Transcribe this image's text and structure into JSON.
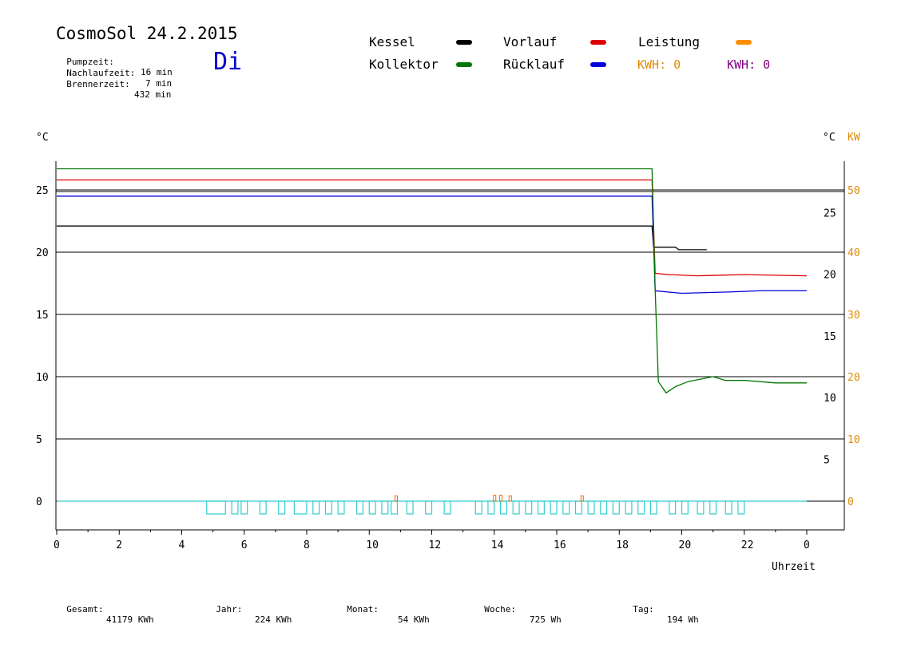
{
  "header": {
    "title": "CosmoSol 24.2.2015",
    "weekday": "Di",
    "stats": [
      {
        "label": "Pumpzeit:",
        "value": "16 min"
      },
      {
        "label": "Nachlaufzeit:",
        "value": "7 min"
      },
      {
        "label": "Brennerzeit:",
        "value": "432 min"
      }
    ]
  },
  "legend": {
    "items": [
      {
        "label": "Kessel",
        "color": "#000000"
      },
      {
        "label": "Vorlauf",
        "color": "#dd0000"
      },
      {
        "label": "Leistung",
        "color": "#ff8c00"
      },
      {
        "label": "Kollektor",
        "color": "#007700"
      },
      {
        "label": "Rücklauf",
        "color": "#0000dd"
      }
    ],
    "kwh_orange": "KWH: 0",
    "kwh_purple": "KWH: 0",
    "kwh_orange_color": "#e08a00",
    "kwh_purple_color": "#800080"
  },
  "footer": {
    "gesamt": {
      "label": "Gesamt:",
      "value": "41179 KWh"
    },
    "jahr": {
      "label": "Jahr:",
      "value": "224 KWh"
    },
    "monat": {
      "label": "Monat:",
      "value": "54 KWh"
    },
    "woche": {
      "label": "Woche:",
      "value": "725 Wh"
    },
    "tag": {
      "label": "Tag:",
      "value": "194 Wh"
    }
  },
  "chart_data": {
    "type": "line",
    "xlabel": "Uhrzeit",
    "ylabel_left": "°C",
    "ylabel_right": "°C",
    "ylabel_right2": "KW",
    "x_ticks": [
      "0",
      "2",
      "4",
      "6",
      "8",
      "10",
      "12",
      "14",
      "16",
      "18",
      "20",
      "22",
      "0"
    ],
    "y_left_ticks": [
      "0",
      "5",
      "10",
      "15",
      "20",
      "25"
    ],
    "y_right_ticks": [
      "5",
      "10",
      "15",
      "20",
      "25"
    ],
    "y_kw_ticks": [
      "0",
      "10",
      "20",
      "30",
      "40",
      "50"
    ],
    "xlim": [
      0,
      24
    ],
    "ylim_left": [
      -2.2,
      27.7
    ],
    "grid": "horizontal",
    "series": [
      {
        "name": "Kessel",
        "color": "#000000",
        "points": [
          [
            0,
            22.1
          ],
          [
            19.05,
            22.1
          ],
          [
            19.1,
            20.4
          ],
          [
            19.8,
            20.4
          ],
          [
            19.9,
            20.2
          ],
          [
            20.8,
            20.2
          ]
        ]
      },
      {
        "name": "Vorlauf",
        "color": "#dd0000",
        "points": [
          [
            0,
            25.8
          ],
          [
            19.05,
            25.8
          ],
          [
            19.15,
            18.3
          ],
          [
            19.6,
            18.2
          ],
          [
            20.5,
            18.1
          ],
          [
            22.0,
            18.2
          ],
          [
            24.0,
            18.1
          ]
        ]
      },
      {
        "name": "Rücklauf",
        "color": "#0000dd",
        "points": [
          [
            0,
            24.5
          ],
          [
            19.05,
            24.5
          ],
          [
            19.15,
            16.9
          ],
          [
            20.0,
            16.7
          ],
          [
            21.5,
            16.8
          ],
          [
            22.5,
            16.9
          ],
          [
            24.0,
            16.9
          ]
        ]
      },
      {
        "name": "Kollektor",
        "color": "#007700",
        "points": [
          [
            0,
            26.7
          ],
          [
            19.05,
            26.7
          ],
          [
            19.15,
            17.0
          ],
          [
            19.25,
            9.6
          ],
          [
            19.5,
            8.7
          ],
          [
            19.8,
            9.2
          ],
          [
            20.2,
            9.6
          ],
          [
            20.6,
            9.8
          ],
          [
            21.0,
            10.0
          ],
          [
            21.4,
            9.7
          ],
          [
            22.0,
            9.7
          ],
          [
            22.5,
            9.6
          ],
          [
            23.0,
            9.5
          ],
          [
            24.0,
            9.5
          ]
        ]
      },
      {
        "name": "Pumpe",
        "color": "#33cccc",
        "baseline": 0.0,
        "pulses": [
          [
            4.8,
            5.4
          ],
          [
            5.6,
            5.8
          ],
          [
            5.9,
            6.1
          ],
          [
            6.5,
            6.7
          ],
          [
            7.1,
            7.3
          ],
          [
            7.6,
            8.0
          ],
          [
            8.2,
            8.4
          ],
          [
            8.6,
            8.8
          ],
          [
            9.0,
            9.2
          ],
          [
            9.6,
            9.8
          ],
          [
            10.0,
            10.2
          ],
          [
            10.4,
            10.6
          ],
          [
            10.7,
            10.9
          ],
          [
            11.2,
            11.4
          ],
          [
            11.8,
            12.0
          ],
          [
            12.4,
            12.6
          ],
          [
            13.4,
            13.6
          ],
          [
            13.8,
            14.0
          ],
          [
            14.2,
            14.4
          ],
          [
            14.6,
            14.8
          ],
          [
            15.0,
            15.2
          ],
          [
            15.4,
            15.6
          ],
          [
            15.8,
            16.0
          ],
          [
            16.2,
            16.4
          ],
          [
            16.6,
            16.8
          ],
          [
            17.0,
            17.2
          ],
          [
            17.4,
            17.6
          ],
          [
            17.8,
            18.0
          ],
          [
            18.2,
            18.4
          ],
          [
            18.6,
            18.8
          ],
          [
            19.0,
            19.2
          ],
          [
            19.6,
            19.8
          ],
          [
            20.0,
            20.2
          ],
          [
            20.5,
            20.7
          ],
          [
            20.9,
            21.1
          ],
          [
            21.4,
            21.6
          ],
          [
            21.8,
            22.0
          ]
        ]
      },
      {
        "name": "Leistung",
        "color": "#ff6600",
        "spikes": [
          [
            10.85,
            0.3
          ],
          [
            14.0,
            0.35
          ],
          [
            14.2,
            0.35
          ],
          [
            14.5,
            0.3
          ],
          [
            16.8,
            0.3
          ]
        ]
      }
    ]
  }
}
